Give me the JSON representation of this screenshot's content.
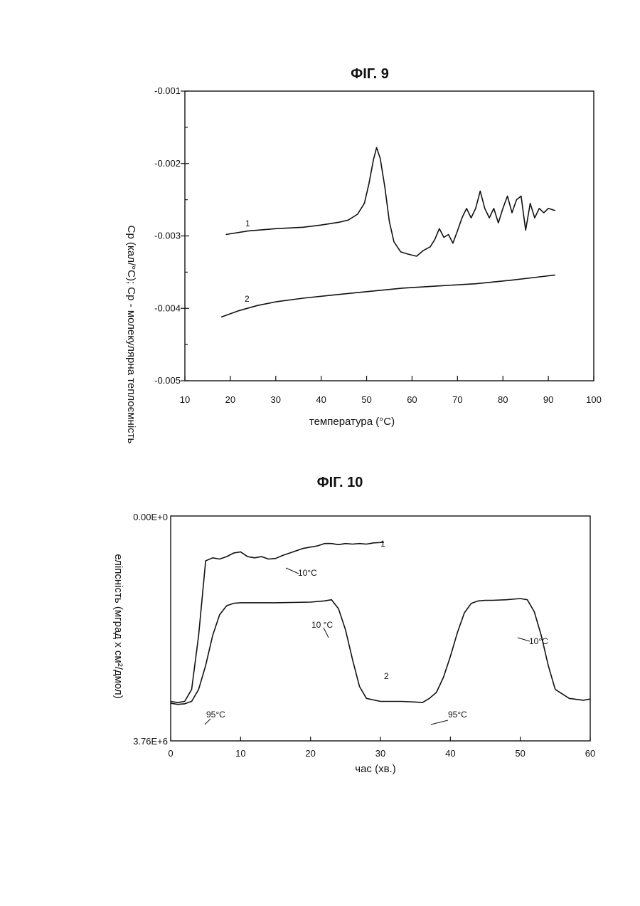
{
  "chart_data": [
    {
      "type": "line",
      "title": "ФІГ. 9",
      "xlabel": "температура (°C)",
      "ylabel": "Cp (кал/°C);  Cp - молекулярна теплоємність",
      "xlim": [
        10,
        100
      ],
      "ylim": [
        -0.005,
        -0.001
      ],
      "x_ticks": [
        "10",
        "20",
        "30",
        "40",
        "50",
        "60",
        "70",
        "80",
        "90",
        "100"
      ],
      "y_ticks": [
        "-0.001",
        "-0.002",
        "-0.003",
        "-0.004",
        "-0.005"
      ],
      "grid": false,
      "series": [
        {
          "name": "1",
          "x": [
            19,
            24,
            30,
            36,
            40,
            44,
            46,
            48,
            49.5,
            50.5,
            51.5,
            52.2,
            53,
            54,
            55,
            56,
            57.5,
            59,
            61,
            62.5,
            64,
            65,
            66,
            67,
            68,
            69,
            70,
            71,
            72,
            73,
            74,
            75,
            76,
            77,
            78,
            79,
            80,
            81,
            82,
            83,
            84,
            85,
            86,
            87,
            88,
            89,
            90,
            91.5
          ],
          "y": [
            -0.00298,
            -0.00293,
            -0.0029,
            -0.00288,
            -0.00285,
            -0.00281,
            -0.00278,
            -0.0027,
            -0.00255,
            -0.00228,
            -0.00195,
            -0.00178,
            -0.00193,
            -0.00232,
            -0.0028,
            -0.00308,
            -0.00322,
            -0.00325,
            -0.00328,
            -0.0032,
            -0.00315,
            -0.00305,
            -0.0029,
            -0.00302,
            -0.00298,
            -0.0031,
            -0.00293,
            -0.00275,
            -0.00262,
            -0.00275,
            -0.00262,
            -0.00238,
            -0.00262,
            -0.00275,
            -0.00262,
            -0.00282,
            -0.00262,
            -0.00245,
            -0.00268,
            -0.0025,
            -0.00245,
            -0.00292,
            -0.00255,
            -0.00275,
            -0.00262,
            -0.00268,
            -0.00262,
            -0.00265
          ]
        },
        {
          "name": "2",
          "x": [
            18,
            22,
            26,
            30,
            36,
            42,
            50,
            58,
            66,
            74,
            82,
            91.5
          ],
          "y": [
            -0.00412,
            -0.00403,
            -0.00396,
            -0.00391,
            -0.00386,
            -0.00382,
            -0.00377,
            -0.00372,
            -0.00369,
            -0.00366,
            -0.00361,
            -0.00354
          ]
        }
      ]
    },
    {
      "type": "line",
      "title": "ФІГ. 10",
      "xlabel": "час (хв.)",
      "ylabel": "еліпсність (мград x см²/дмол)",
      "xlim": [
        0,
        60
      ],
      "y_top_label": "0.00E+0",
      "y_bottom_label": "3.76E+6",
      "x_ticks": [
        "0",
        "10",
        "20",
        "30",
        "40",
        "50",
        "60"
      ],
      "grid": false,
      "annotations": [
        "10°C",
        "10 °C",
        "10°C",
        "95°C",
        "95°C"
      ],
      "series": [
        {
          "name": "1",
          "x": [
            0,
            1,
            2,
            3,
            4,
            5,
            6,
            7,
            8,
            9,
            10,
            11,
            12,
            13,
            14,
            15,
            16,
            17,
            18,
            19,
            20,
            21,
            22,
            23,
            24,
            25,
            26,
            27,
            28,
            29,
            30.5
          ],
          "y": [
            3100000.0,
            3120000.0,
            3100000.0,
            2900000.0,
            2000000.0,
            750000.0,
            700000.0,
            720000.0,
            680000.0,
            620000.0,
            600000.0,
            680000.0,
            700000.0,
            680000.0,
            720000.0,
            710000.0,
            660000.0,
            620000.0,
            580000.0,
            540000.0,
            520000.0,
            500000.0,
            460000.0,
            460000.0,
            480000.0,
            460000.0,
            470000.0,
            460000.0,
            470000.0,
            450000.0,
            440000.0
          ]
        },
        {
          "name": "2",
          "x": [
            0,
            1,
            2,
            3,
            4,
            5,
            6,
            7,
            8,
            9,
            10,
            15,
            20,
            22,
            23,
            24,
            25,
            26,
            27,
            28,
            30,
            33,
            35,
            36,
            37,
            38,
            39,
            40,
            41,
            42,
            43,
            44,
            45,
            46,
            48,
            50,
            51,
            52,
            53,
            54,
            55,
            57,
            59,
            60
          ],
          "y": [
            3130000.0,
            3150000.0,
            3140000.0,
            3100000.0,
            2900000.0,
            2500000.0,
            2000000.0,
            1650000.0,
            1500000.0,
            1460000.0,
            1450000.0,
            1450000.0,
            1440000.0,
            1420000.0,
            1400000.0,
            1550000.0,
            1900000.0,
            2400000.0,
            2850000.0,
            3050000.0,
            3100000.0,
            3100000.0,
            3110000.0,
            3120000.0,
            3050000.0,
            2950000.0,
            2700000.0,
            2350000.0,
            1950000.0,
            1620000.0,
            1460000.0,
            1420000.0,
            1410000.0,
            1410000.0,
            1400000.0,
            1380000.0,
            1400000.0,
            1600000.0,
            2000000.0,
            2500000.0,
            2900000.0,
            3050000.0,
            3080000.0,
            3060000.0
          ]
        }
      ]
    }
  ]
}
